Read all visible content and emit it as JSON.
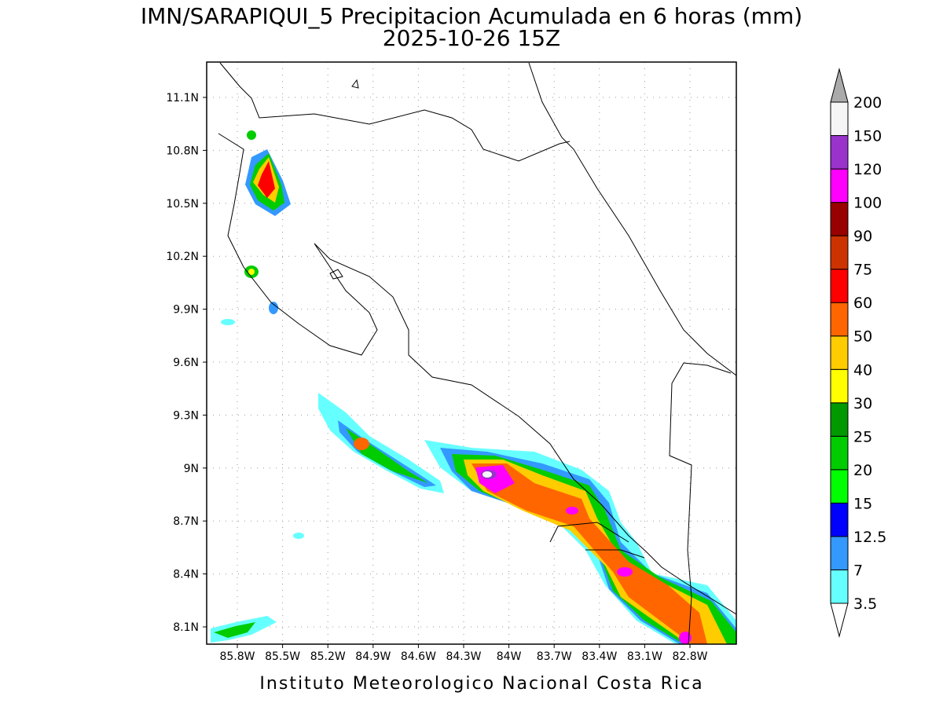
{
  "header": {
    "title": "IMN/SARAPIQUI_5 Precipitacion Acumulada en 6 horas (mm)",
    "subtitle": "2025-10-26 15Z"
  },
  "map": {
    "lat_labels": [
      "11.1N",
      "10.8N",
      "10.5N",
      "10.2N",
      "9.9N",
      "9.6N",
      "9.3N",
      "9N",
      "8.7N",
      "8.4N",
      "8.1N"
    ],
    "lon_labels": [
      "85.8W",
      "85.5W",
      "85.2W",
      "84.9W",
      "84.6W",
      "84.3W",
      "84W",
      "83.7W",
      "83.4W",
      "83.1W",
      "82.8W"
    ]
  },
  "colorbar": {
    "labels": [
      "3.5",
      "7",
      "12.5",
      "15",
      "20",
      "25",
      "30",
      "40",
      "50",
      "60",
      "75",
      "90",
      "100",
      "120",
      "150",
      "200"
    ],
    "colors": [
      "#66ffff",
      "#3399ff",
      "#0000ff",
      "#00ff00",
      "#00cc00",
      "#009900",
      "#ffff00",
      "#ffcc00",
      "#ff6600",
      "#ff0000",
      "#cc3300",
      "#990000",
      "#ff00ff",
      "#9933cc",
      "#f5f5f5"
    ]
  },
  "footer": {
    "text": "Instituto Meteorologico Nacional Costa Rica"
  }
}
